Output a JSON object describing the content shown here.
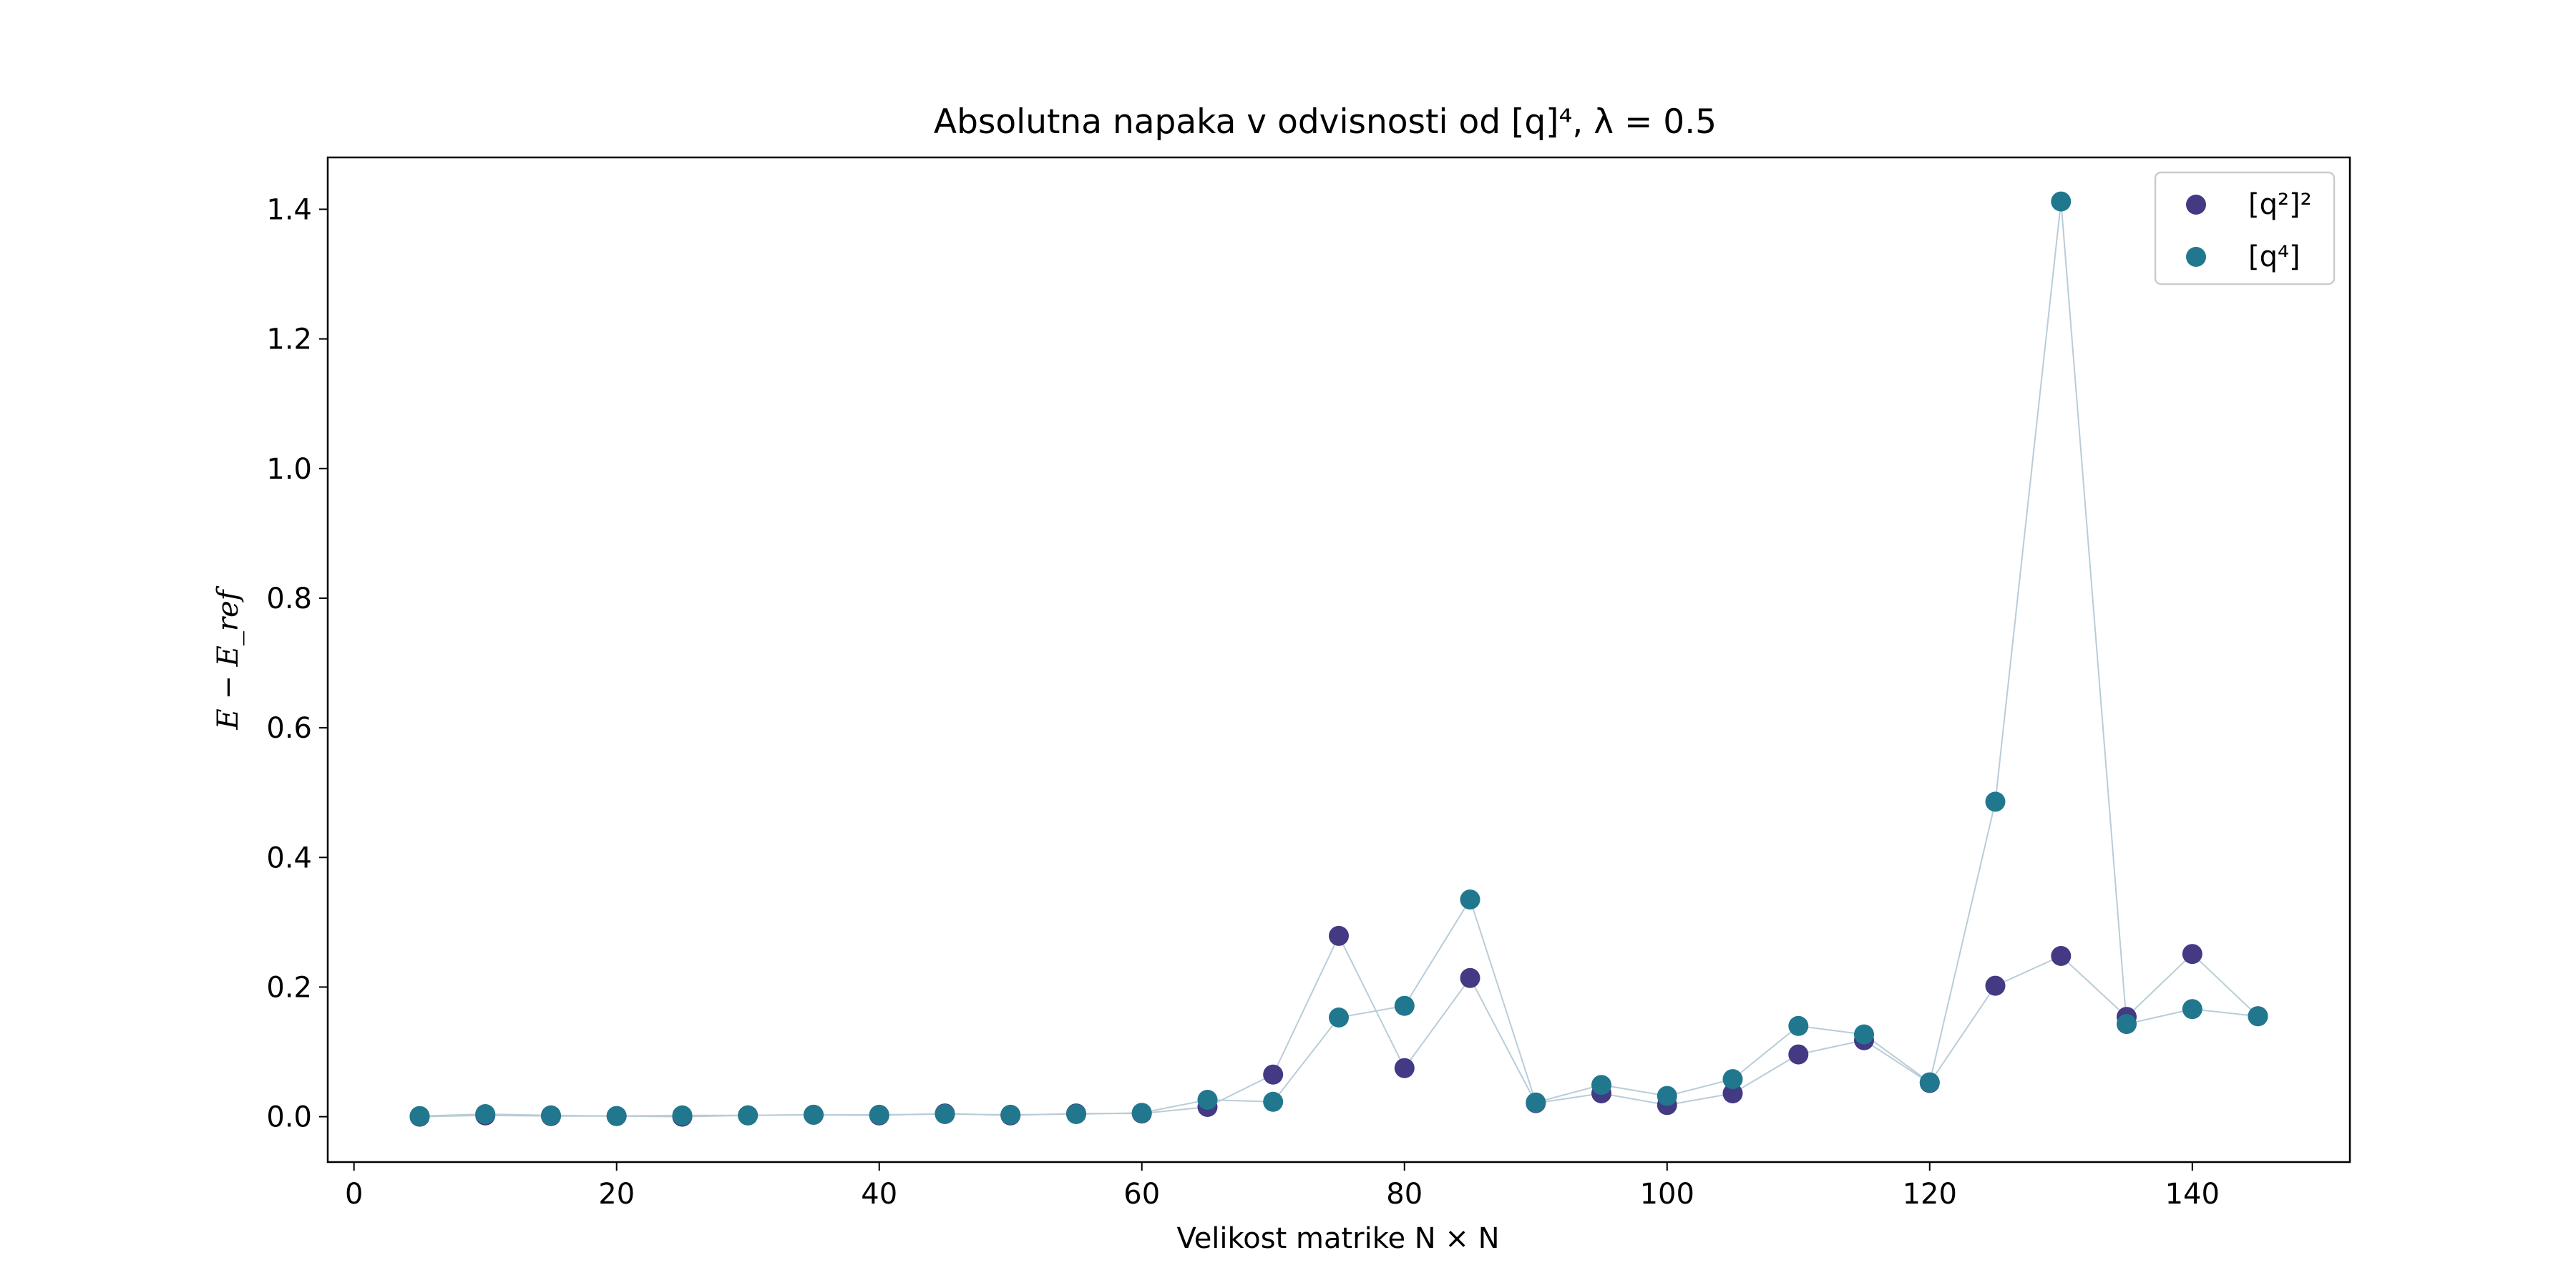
{
  "chart_data": {
    "type": "scatter",
    "title": "Absolutna napaka v odvisnosti od [q]⁴, λ = 0.5",
    "xlabel": "Velikost matrike N × N",
    "ylabel": "E − E_ref",
    "xlim": [
      -2,
      152
    ],
    "ylim": [
      -0.07,
      1.48
    ],
    "xticks": [
      0,
      20,
      40,
      60,
      80,
      100,
      120,
      140
    ],
    "xtick_labels": [
      "0",
      "20",
      "40",
      "60",
      "80",
      "100",
      "120",
      "140"
    ],
    "yticks": [
      0.0,
      0.2,
      0.4,
      0.6,
      0.8,
      1.0,
      1.2,
      1.4
    ],
    "ytick_labels": [
      "0.0",
      "0.2",
      "0.4",
      "0.6",
      "0.8",
      "1.0",
      "1.2",
      "1.4"
    ],
    "legend_position": "top-right",
    "grid": false,
    "x": [
      5,
      10,
      15,
      20,
      25,
      30,
      35,
      40,
      45,
      50,
      55,
      60,
      65,
      70,
      75,
      80,
      85,
      90,
      95,
      100,
      105,
      110,
      115,
      120,
      125,
      130,
      135,
      140,
      145
    ],
    "series": [
      {
        "name": "[q²]²",
        "color": "#443983",
        "values": [
          0.0,
          0.002,
          0.001,
          0.001,
          0.0,
          0.002,
          0.003,
          0.002,
          0.005,
          0.002,
          0.005,
          0.005,
          0.015,
          0.065,
          0.279,
          0.075,
          0.214,
          0.021,
          0.036,
          0.018,
          0.036,
          0.096,
          0.118,
          0.052,
          0.202,
          0.248,
          0.154,
          0.251,
          0.155
        ]
      },
      {
        "name": "[q⁴]",
        "color": "#21788e",
        "values": [
          0.001,
          0.004,
          0.002,
          0.001,
          0.002,
          0.002,
          0.003,
          0.003,
          0.004,
          0.003,
          0.004,
          0.006,
          0.026,
          0.023,
          0.153,
          0.171,
          0.335,
          0.022,
          0.049,
          0.032,
          0.058,
          0.14,
          0.127,
          0.053,
          0.486,
          1.412,
          0.143,
          0.166,
          0.155
        ]
      }
    ],
    "connector_color": "#b9cdd8"
  }
}
